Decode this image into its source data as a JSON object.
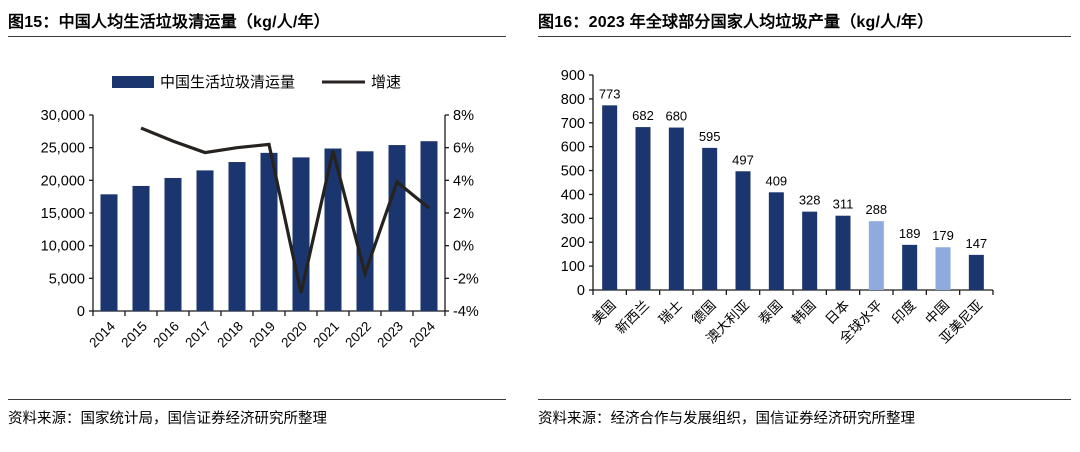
{
  "colors": {
    "navy_bar": "#1B366E",
    "light_blue_bar": "#8FAADC",
    "growth_line": "#262220",
    "axis": "#1a1a1a",
    "text": "#000000",
    "rule": "#3b3b3b"
  },
  "chart_data": [
    {
      "type": "bar+line",
      "title": "图15：中国人均生活垃圾清运量（kg/人/年）",
      "source": "资料来源：国家统计局，国信证券经济研究所整理",
      "categories": [
        "2014",
        "2015",
        "2016",
        "2017",
        "2018",
        "2019",
        "2020",
        "2021",
        "2022",
        "2023",
        "2024"
      ],
      "series": [
        {
          "name": "中国生活垃圾清运量",
          "type": "bar",
          "axis": "left",
          "values": [
            17860,
            19142,
            20362,
            21521,
            22802,
            24206,
            23512,
            24869,
            24445,
            25400,
            25990
          ]
        },
        {
          "name": "增速",
          "type": "line",
          "axis": "right",
          "values": [
            null,
            7.2,
            6.4,
            5.7,
            6.0,
            6.2,
            -2.9,
            5.8,
            -1.7,
            3.9,
            2.3
          ]
        }
      ],
      "left_axis": {
        "min": 0,
        "max": 30000,
        "step": 5000,
        "tick_labels": [
          "0",
          "5,000",
          "10,000",
          "15,000",
          "20,000",
          "25,000",
          "30,000"
        ]
      },
      "right_axis": {
        "min": -4,
        "max": 8,
        "step": 2,
        "unit": "%",
        "tick_labels": [
          "-4%",
          "-2%",
          "0%",
          "2%",
          "4%",
          "6%",
          "8%"
        ]
      },
      "legend_position": "top",
      "grid": false
    },
    {
      "type": "bar",
      "title": "图16：2023 年全球部分国家人均垃圾产量（kg/人/年）",
      "source": "资料来源：经济合作与发展组织，国信证券经济研究所整理",
      "categories": [
        "美国",
        "新西兰",
        "瑞士",
        "德国",
        "澳大利亚",
        "泰国",
        "韩国",
        "日本",
        "全球水平",
        "印度",
        "中国",
        "亚美尼亚"
      ],
      "values": [
        773,
        682,
        680,
        595,
        497,
        409,
        328,
        311,
        288,
        189,
        179,
        147
      ],
      "highlighted_categories": [
        "全球水平",
        "中国"
      ],
      "ylim": [
        0,
        900
      ],
      "ystep": 100,
      "ytick_labels": [
        "0",
        "100",
        "200",
        "300",
        "400",
        "500",
        "600",
        "700",
        "800",
        "900"
      ],
      "data_labels": true,
      "grid": false
    }
  ]
}
